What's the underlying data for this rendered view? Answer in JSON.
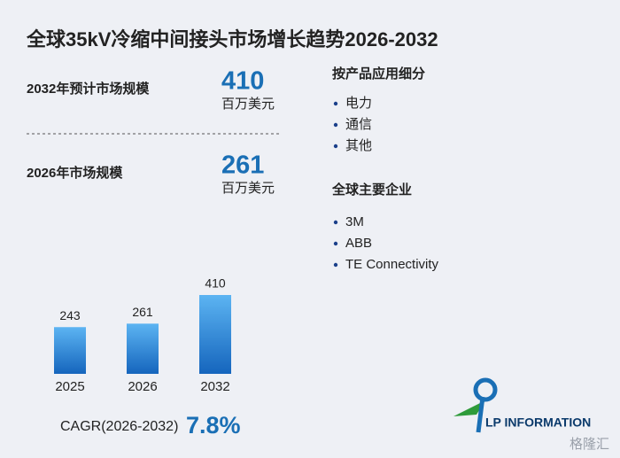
{
  "title": "全球35kV冷缩中间接头市场增长趋势2026-2032",
  "stats": [
    {
      "label": "2032年预计市场规模",
      "value": "410",
      "unit": "百万美元"
    },
    {
      "label": "2026年市场规模",
      "value": "261",
      "unit": "百万美元"
    }
  ],
  "segments": {
    "title": "按产品应用细分",
    "items": [
      "电力",
      "通信",
      "其他"
    ]
  },
  "companies": {
    "title": "全球主要企业",
    "items": [
      "3M",
      "ABB",
      "TE Connectivity"
    ]
  },
  "cagr": {
    "label": "CAGR(2026-2032)",
    "value": "7.8%"
  },
  "logo": "LP INFORMATION",
  "watermark": "格隆汇",
  "chart_data": {
    "type": "bar",
    "categories": [
      "2025",
      "2026",
      "2032"
    ],
    "values": [
      243,
      261,
      410
    ],
    "color": "#2a84d8"
  }
}
